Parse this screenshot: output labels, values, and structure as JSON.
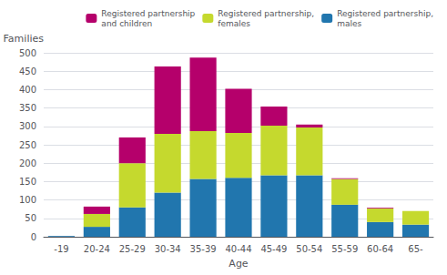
{
  "chart_data": {
    "type": "bar",
    "stacked": true,
    "xlabel": "Age",
    "ylabel": "Families",
    "categories": [
      "-19",
      "20-24",
      "25-29",
      "30-34",
      "35-39",
      "40-44",
      "45-49",
      "50-54",
      "55-59",
      "60-64",
      "65-"
    ],
    "series": [
      {
        "name": "Registered partnership,\nmales",
        "color": "#2176ae",
        "values": [
          2,
          27,
          80,
          120,
          157,
          160,
          167,
          167,
          87,
          40,
          33
        ]
      },
      {
        "name": "Registered partnership,\nfemales",
        "color": "#c5d92e",
        "values": [
          0,
          35,
          120,
          160,
          130,
          122,
          135,
          130,
          70,
          37,
          37
        ]
      },
      {
        "name": "Registered partnership\nand children",
        "color": "#b5006b",
        "values": [
          0,
          20,
          70,
          183,
          200,
          120,
          52,
          8,
          2,
          2,
          0
        ]
      }
    ],
    "ylim": [
      0,
      500
    ],
    "yticks": [
      0,
      50,
      100,
      150,
      200,
      250,
      300,
      350,
      400,
      450,
      500
    ],
    "grid": true,
    "legend": "upper right"
  }
}
